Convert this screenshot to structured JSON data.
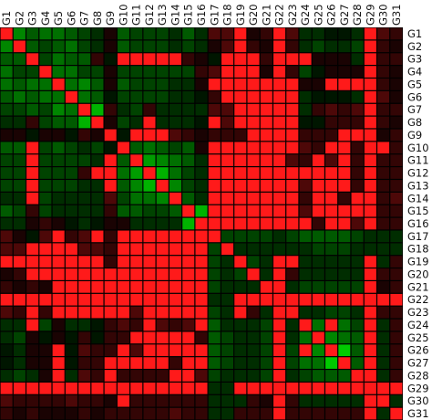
{
  "chart_data": {
    "type": "heatmap",
    "title": "",
    "xlabel": "",
    "ylabel": "",
    "x_tick_position": "top",
    "y_tick_position": "right",
    "grid": true,
    "color_scale": {
      "min": -1,
      "max": 1,
      "negative": "#00e000",
      "zero": "#000000",
      "positive": "#ff1a1a"
    },
    "x_labels": [
      "G1",
      "G2",
      "G3",
      "G4",
      "G5",
      "G6",
      "G7",
      "G8",
      "G9",
      "G10",
      "G11",
      "G12",
      "G13",
      "G14",
      "G15",
      "G16",
      "G17",
      "G18",
      "G19",
      "G20",
      "G21",
      "G22",
      "G23",
      "G24",
      "G25",
      "G26",
      "G27",
      "G28",
      "G29",
      "G30",
      "G31"
    ],
    "y_labels": [
      "G1",
      "G2",
      "G3",
      "G4",
      "G5",
      "G6",
      "G7",
      "G8",
      "G9",
      "G10",
      "G11",
      "G12",
      "G13",
      "G14",
      "G15",
      "G16",
      "G17",
      "G18",
      "G19",
      "G20",
      "G21",
      "G22",
      "G23",
      "G24",
      "G25",
      "G26",
      "G27",
      "G28",
      "G29",
      "G30",
      "G31"
    ],
    "values": [
      [
        1,
        -0.6,
        -0.4,
        -0.5,
        -0.5,
        -0.4,
        -0.3,
        -0.2,
        0.1,
        -0.4,
        -0.3,
        -0.3,
        -0.3,
        -0.2,
        -0.4,
        -0.2,
        0.3,
        0.3,
        1,
        0.1,
        0.2,
        1,
        0.3,
        -0.2,
        -0.2,
        -0.1,
        -0.1,
        -0.2,
        1,
        0.3,
        0.2
      ],
      [
        -0.6,
        1,
        -0.4,
        -0.3,
        -0.4,
        -0.5,
        -0.3,
        -0.2,
        0.1,
        -0.4,
        -0.3,
        -0.3,
        -0.3,
        -0.2,
        -0.3,
        -0.2,
        0.1,
        0.3,
        1,
        0.2,
        0.1,
        1,
        0.2,
        -0.2,
        -0.3,
        -0.2,
        -0.2,
        -0.3,
        1,
        0.2,
        0.1
      ],
      [
        -0.4,
        -0.4,
        1,
        -0.3,
        -0.5,
        -0.4,
        -0.4,
        0.2,
        -0.1,
        1,
        1,
        1,
        1,
        1,
        0.2,
        0.1,
        -0.1,
        1,
        1,
        1,
        0.2,
        1,
        1,
        1,
        0.1,
        0.1,
        0.1,
        -0.2,
        1,
        0.2,
        0.2
      ],
      [
        -0.5,
        -0.3,
        -0.3,
        1,
        -0.5,
        -0.5,
        -0.3,
        -0.3,
        0.1,
        -0.3,
        -0.3,
        -0.3,
        -0.3,
        -0.3,
        -0.3,
        0.2,
        0.3,
        1,
        1,
        1,
        0.1,
        1,
        0.2,
        -0.3,
        -0.1,
        0.1,
        0.1,
        0.1,
        1,
        0.2,
        0.1
      ],
      [
        -0.5,
        -0.4,
        -0.5,
        -0.5,
        1,
        -0.5,
        -0.6,
        -0.4,
        0.1,
        -0.4,
        -0.3,
        -0.3,
        -0.3,
        -0.2,
        -0.2,
        0.1,
        1,
        1,
        1,
        1,
        1,
        1,
        1,
        0.1,
        0.1,
        1,
        1,
        1,
        1,
        0.2,
        0.1
      ],
      [
        -0.4,
        -0.5,
        -0.4,
        -0.5,
        -0.5,
        1,
        -0.5,
        -0.4,
        -0.1,
        -0.3,
        -0.3,
        -0.3,
        -0.3,
        -0.2,
        -0.2,
        -0.1,
        0.2,
        1,
        1,
        1,
        1,
        1,
        1,
        -0.2,
        -0.1,
        -0.1,
        -0.1,
        -0.2,
        1,
        0.3,
        0.1
      ],
      [
        -0.3,
        -0.3,
        -0.4,
        -0.3,
        -0.6,
        -0.5,
        1,
        -0.8,
        0.2,
        -0.2,
        -0.3,
        0.2,
        -0.2,
        -0.2,
        -0.2,
        -0.2,
        0.3,
        0.3,
        1,
        1,
        1,
        1,
        1,
        -0.2,
        0.2,
        0.3,
        0.2,
        0.3,
        1,
        0.2,
        0.2
      ],
      [
        -0.2,
        -0.2,
        0.2,
        -0.3,
        -0.4,
        -0.4,
        -0.8,
        1,
        0.1,
        -0.3,
        -0.2,
        1,
        -0.2,
        -0.2,
        -0.2,
        -0.1,
        1,
        0.3,
        1,
        1,
        1,
        1,
        1,
        -0.1,
        -0.1,
        0.2,
        0.2,
        0.2,
        1,
        0.2,
        0.1
      ],
      [
        0.1,
        0.1,
        -0.1,
        0.1,
        0.1,
        -0.1,
        0.2,
        0.1,
        1,
        -0.1,
        1,
        1,
        1,
        0.3,
        0.2,
        0.1,
        0.2,
        0.2,
        0.2,
        1,
        1,
        1,
        1,
        0.2,
        0.2,
        0.2,
        1,
        1,
        1,
        0.1,
        0.2
      ],
      [
        -0.4,
        -0.4,
        1,
        -0.3,
        -0.4,
        -0.3,
        -0.2,
        -0.3,
        -0.1,
        1,
        -0.4,
        -0.5,
        -0.4,
        -0.3,
        -0.4,
        0.1,
        1,
        1,
        1,
        1,
        1,
        1,
        1,
        0.3,
        0.2,
        1,
        1,
        0.2,
        1,
        1,
        0.2
      ],
      [
        -0.3,
        -0.3,
        1,
        -0.3,
        -0.3,
        -0.3,
        -0.3,
        -0.2,
        1,
        -0.4,
        1,
        -0.7,
        -0.6,
        -0.5,
        -0.4,
        -0.2,
        1,
        1,
        1,
        1,
        1,
        1,
        0.3,
        0.2,
        1,
        0.3,
        1,
        0.2,
        1,
        0.2,
        0.2
      ],
      [
        -0.3,
        -0.3,
        1,
        -0.3,
        -0.3,
        -0.3,
        0.2,
        1,
        1,
        -0.5,
        -0.7,
        1,
        -0.8,
        -0.5,
        -0.3,
        -0.2,
        1,
        1,
        1,
        1,
        1,
        1,
        1,
        1,
        1,
        1,
        1,
        0.2,
        1,
        0.2,
        0.2
      ],
      [
        -0.3,
        -0.3,
        1,
        -0.3,
        -0.3,
        -0.3,
        -0.2,
        -0.2,
        1,
        -0.4,
        -0.6,
        -0.8,
        1,
        -0.6,
        -0.3,
        -0.2,
        1,
        1,
        1,
        1,
        1,
        1,
        1,
        0.3,
        1,
        1,
        1,
        0.2,
        1,
        0.2,
        0.2
      ],
      [
        -0.2,
        -0.2,
        1,
        -0.3,
        -0.2,
        -0.2,
        -0.2,
        -0.2,
        0.3,
        -0.3,
        -0.5,
        -0.5,
        -0.6,
        1,
        -0.4,
        -0.2,
        1,
        1,
        1,
        1,
        1,
        1,
        1,
        0.2,
        1,
        1,
        0.2,
        1,
        1,
        0.2,
        0.3
      ],
      [
        -0.4,
        -0.3,
        0.2,
        -0.3,
        -0.2,
        -0.2,
        -0.2,
        -0.2,
        0.2,
        -0.4,
        -0.4,
        -0.3,
        -0.3,
        -0.4,
        1,
        -0.8,
        1,
        1,
        1,
        1,
        1,
        1,
        1,
        0.3,
        1,
        1,
        1,
        1,
        1,
        0.2,
        0.2
      ],
      [
        -0.2,
        -0.2,
        0.1,
        0.2,
        0.1,
        -0.1,
        -0.2,
        -0.1,
        0.1,
        0.1,
        -0.2,
        -0.2,
        -0.2,
        -0.2,
        -0.8,
        1,
        1,
        1,
        1,
        1,
        1,
        1,
        1,
        1,
        0.2,
        1,
        1,
        0.3,
        1,
        0.2,
        0.2
      ],
      [
        0.3,
        0.1,
        -0.1,
        0.3,
        1,
        0.2,
        0.3,
        1,
        0.2,
        1,
        1,
        1,
        1,
        1,
        1,
        1,
        1,
        -0.3,
        -0.3,
        -0.3,
        -0.3,
        -0.2,
        -0.3,
        -0.4,
        -0.4,
        -0.4,
        -0.4,
        -0.3,
        -0.2,
        -0.2,
        -0.2
      ],
      [
        0.3,
        0.3,
        1,
        1,
        1,
        1,
        0.3,
        0.3,
        0.2,
        1,
        1,
        1,
        1,
        1,
        1,
        1,
        -0.3,
        1,
        -0.2,
        -0.2,
        -0.2,
        -0.2,
        -0.2,
        -0.2,
        -0.3,
        -0.3,
        -0.3,
        -0.2,
        -0.2,
        -0.2,
        -0.2
      ],
      [
        1,
        1,
        1,
        1,
        1,
        1,
        1,
        1,
        0.2,
        1,
        1,
        1,
        1,
        1,
        1,
        1,
        -0.3,
        -0.2,
        1,
        -0.3,
        -0.2,
        1,
        1,
        -0.2,
        -0.2,
        -0.2,
        -0.2,
        -0.2,
        1,
        -0.2,
        0.2
      ],
      [
        0.1,
        0.2,
        1,
        1,
        1,
        1,
        1,
        1,
        1,
        1,
        1,
        1,
        1,
        1,
        1,
        1,
        -0.3,
        -0.2,
        -0.3,
        1,
        -0.2,
        1,
        0.2,
        -0.2,
        -0.2,
        -0.2,
        -0.2,
        -0.2,
        1,
        0.2,
        0.2
      ],
      [
        0.2,
        0.1,
        0.2,
        0.1,
        1,
        1,
        1,
        1,
        1,
        1,
        1,
        1,
        1,
        1,
        1,
        1,
        -0.3,
        -0.2,
        -0.2,
        -0.2,
        1,
        1,
        -0.2,
        -0.3,
        -0.3,
        -0.3,
        -0.3,
        -0.3,
        1,
        0.1,
        0.2
      ],
      [
        1,
        1,
        1,
        1,
        1,
        1,
        1,
        1,
        1,
        1,
        1,
        1,
        1,
        1,
        1,
        1,
        -0.2,
        -0.2,
        1,
        1,
        1,
        1,
        1,
        1,
        1,
        1,
        1,
        1,
        1,
        1,
        1
      ],
      [
        0.3,
        0.2,
        1,
        0.2,
        1,
        1,
        1,
        1,
        1,
        1,
        0.3,
        1,
        1,
        1,
        1,
        1,
        -0.3,
        -0.2,
        1,
        0.2,
        -0.2,
        1,
        1,
        -0.2,
        -0.2,
        -0.3,
        -0.3,
        -0.2,
        1,
        0.2,
        0.2
      ],
      [
        -0.2,
        -0.2,
        1,
        -0.3,
        0.1,
        -0.2,
        -0.2,
        -0.1,
        0.2,
        0.3,
        0.2,
        1,
        0.3,
        0.2,
        0.3,
        1,
        -0.4,
        -0.2,
        -0.2,
        -0.2,
        -0.3,
        1,
        -0.2,
        1,
        -0.5,
        1,
        -0.5,
        -0.3,
        1,
        -0.2,
        0.2
      ],
      [
        -0.2,
        -0.3,
        0.1,
        -0.1,
        0.1,
        -0.1,
        0.2,
        -0.1,
        0.2,
        0.2,
        1,
        1,
        1,
        1,
        1,
        0.2,
        -0.4,
        -0.3,
        -0.2,
        -0.2,
        -0.3,
        1,
        -0.2,
        -0.5,
        1,
        -0.6,
        -0.5,
        -0.4,
        1,
        -0.2,
        0.2
      ],
      [
        -0.1,
        -0.2,
        0.1,
        0.1,
        1,
        -0.1,
        0.3,
        0.2,
        0.2,
        1,
        0.3,
        1,
        1,
        1,
        1,
        1,
        -0.4,
        -0.3,
        -0.2,
        -0.2,
        -0.3,
        1,
        -0.3,
        1,
        -0.6,
        1,
        -0.9,
        -0.4,
        1,
        -0.2,
        0.2
      ],
      [
        -0.1,
        -0.2,
        0.1,
        0.1,
        1,
        -0.1,
        0.2,
        0.2,
        1,
        1,
        1,
        1,
        1,
        0.2,
        1,
        1,
        -0.4,
        -0.3,
        -0.2,
        -0.2,
        -0.3,
        1,
        -0.3,
        -0.5,
        -0.5,
        -0.9,
        1,
        -0.4,
        1,
        -0.2,
        0.2
      ],
      [
        -0.2,
        -0.3,
        -0.2,
        0.1,
        1,
        -0.2,
        0.3,
        0.2,
        1,
        0.2,
        0.2,
        0.2,
        0.2,
        1,
        1,
        0.3,
        -0.3,
        -0.2,
        -0.2,
        -0.2,
        -0.3,
        1,
        -0.2,
        -0.3,
        -0.4,
        -0.4,
        -0.4,
        1,
        1,
        -0.2,
        0.2
      ],
      [
        1,
        1,
        1,
        1,
        1,
        1,
        1,
        1,
        1,
        1,
        1,
        1,
        1,
        1,
        1,
        1,
        -0.2,
        -0.2,
        1,
        1,
        1,
        1,
        1,
        1,
        1,
        1,
        1,
        1,
        1,
        1,
        1
      ],
      [
        0.3,
        0.2,
        0.2,
        0.2,
        0.2,
        0.3,
        0.2,
        0.2,
        0.1,
        1,
        0.2,
        0.2,
        0.2,
        0.2,
        0.2,
        0.2,
        -0.2,
        -0.2,
        -0.2,
        0.2,
        0.1,
        1,
        0.2,
        -0.2,
        -0.2,
        -0.2,
        -0.2,
        -0.2,
        1,
        1,
        -0.2
      ],
      [
        0.2,
        0.1,
        0.2,
        0.1,
        0.1,
        0.1,
        0.2,
        0.1,
        0.2,
        0.2,
        0.2,
        0.2,
        0.2,
        0.3,
        0.2,
        0.2,
        -0.2,
        -0.2,
        0.2,
        0.2,
        0.2,
        1,
        0.2,
        0.2,
        0.2,
        0.2,
        0.2,
        0.2,
        1,
        -0.2,
        1
      ]
    ]
  }
}
